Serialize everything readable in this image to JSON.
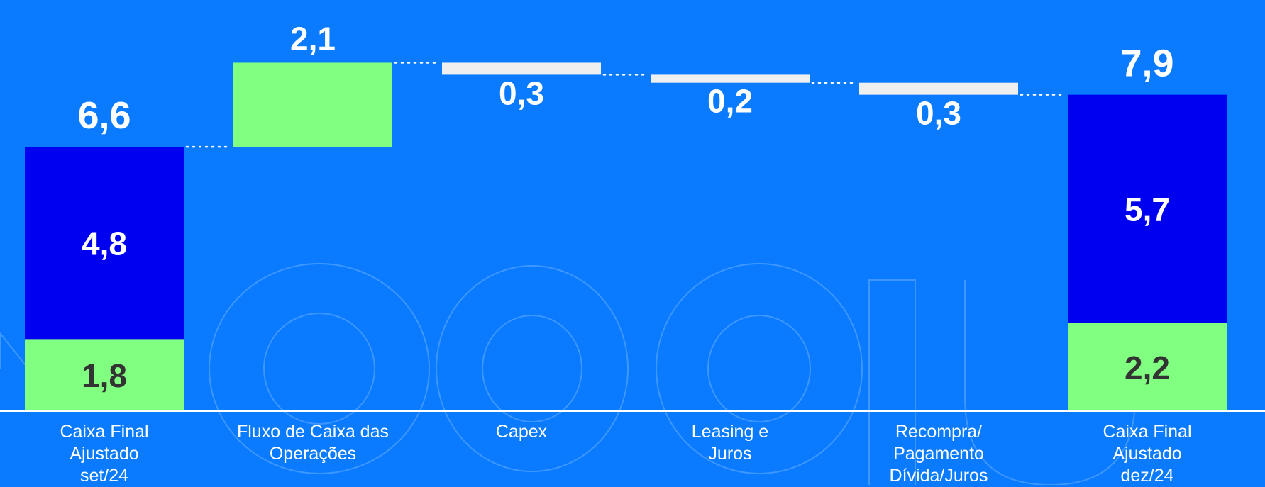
{
  "chart_data": {
    "type": "bar",
    "subtype": "waterfall",
    "unit": "",
    "categories": [
      "Caixa Final Ajustado set/24",
      "Fluxo de Caixa das Operações",
      "Capex",
      "Leasing e Juros",
      "Recompra/ Pagamento Dívida/Juros",
      "Caixa Final Ajustado dez/24"
    ],
    "category_lines": [
      [
        "Caixa Final",
        "Ajustado",
        "set/24"
      ],
      [
        "Fluxo de Caixa das",
        "Operações"
      ],
      [
        "Capex"
      ],
      [
        "Leasing e",
        "Juros"
      ],
      [
        "Recompra/",
        "Pagamento",
        "Dívida/Juros"
      ],
      [
        "Caixa Final",
        "Ajustado",
        "dez/24"
      ]
    ],
    "bars": [
      {
        "category": "Caixa Final Ajustado set/24",
        "kind": "total",
        "total": 6.6,
        "total_label": "6,6",
        "segments": [
          {
            "value": 1.8,
            "label": "1,8",
            "color": "#80FF80",
            "label_color": "#333333"
          },
          {
            "value": 4.8,
            "label": "4,8",
            "color": "#0000F0",
            "label_color": "#ffffff"
          }
        ]
      },
      {
        "category": "Fluxo de Caixa das Operações",
        "kind": "increase",
        "value": 2.1,
        "label": "2,1",
        "color": "#80FF80"
      },
      {
        "category": "Capex",
        "kind": "decrease",
        "value": -0.3,
        "label": "0,3",
        "color": "#EFEFEF"
      },
      {
        "category": "Leasing e Juros",
        "kind": "decrease",
        "value": -0.2,
        "label": "0,2",
        "color": "#EFEFEF"
      },
      {
        "category": "Recompra/ Pagamento Dívida/Juros",
        "kind": "decrease",
        "value": -0.3,
        "label": "0,3",
        "color": "#EFEFEF"
      },
      {
        "category": "Caixa Final Ajustado dez/24",
        "kind": "total",
        "total": 7.9,
        "total_label": "7,9",
        "segments": [
          {
            "value": 2.2,
            "label": "2,2",
            "color": "#80FF80",
            "label_color": "#333333"
          },
          {
            "value": 5.7,
            "label": "5,7",
            "color": "#0000F0",
            "label_color": "#ffffff"
          }
        ]
      }
    ],
    "ylim": [
      0,
      8.7
    ],
    "grid": false,
    "legend": "none",
    "connectors": "dotted",
    "colors": {
      "background": "#0A7BFF",
      "baseline": "#ffffff",
      "connector": "#ffffff",
      "value_label": "#ffffff",
      "category_label": "#ffffff",
      "watermark": "#3D97FF"
    },
    "watermark": "magalu"
  }
}
